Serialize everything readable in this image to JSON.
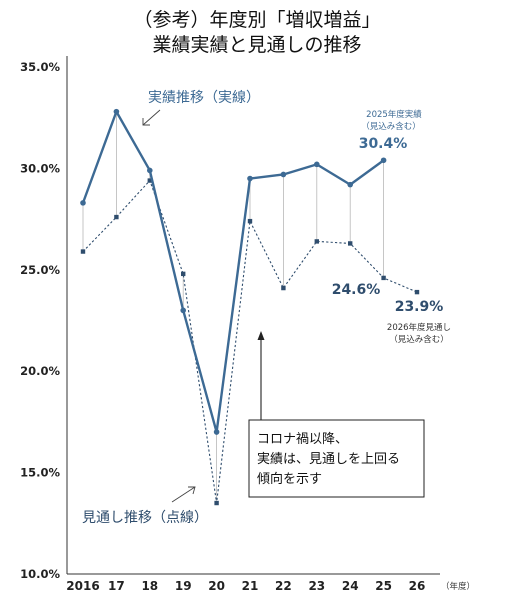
{
  "title_line1": "（参考）年度別「増収増益」",
  "title_line2": "業績実績と見通しの推移",
  "colors": {
    "actual": "#3d6a94",
    "forecast": "#2f4d6d",
    "axis": "#333333",
    "annotation_text": "#3d6a94",
    "connector": "#b8b8b8"
  },
  "chart_data": {
    "type": "line",
    "title": "（参考）年度別「増収増益」業績実績と見通しの推移",
    "x_unit_label": "（年度）",
    "categories": [
      "2016",
      "17",
      "18",
      "19",
      "20",
      "21",
      "22",
      "23",
      "24",
      "25",
      "26"
    ],
    "ylim": [
      10.0,
      35.0
    ],
    "y_ticks": [
      "10.0%",
      "15.0%",
      "20.0%",
      "25.0%",
      "30.0%",
      "35.0%"
    ],
    "grid": false,
    "series": [
      {
        "name": "実績推移（実線）",
        "style": "solid",
        "values": [
          28.3,
          32.8,
          29.9,
          23.0,
          17.0,
          29.5,
          29.7,
          30.2,
          29.2,
          30.4,
          null
        ]
      },
      {
        "name": "見通し推移（点線）",
        "style": "dotted",
        "values": [
          25.9,
          27.6,
          29.4,
          24.8,
          13.5,
          27.4,
          24.1,
          26.4,
          26.3,
          24.6,
          23.9
        ]
      }
    ],
    "annotations": {
      "actual_series_label": "実績推移（実線）",
      "forecast_series_label": "見通し推移（点線）",
      "fy2025_actual_caption_1": "2025年度実績",
      "fy2025_actual_caption_2": "（見込み含む）",
      "fy2025_actual_value": "30.4%",
      "fy2025_forecast_value": "24.6%",
      "fy2026_forecast_value": "23.9%",
      "fy2026_forecast_caption_1": "2026年度見通し",
      "fy2026_forecast_caption_2": "（見込み含む）",
      "callout_line1": "コロナ禍以降、",
      "callout_line2": "実績は、見通しを上回る",
      "callout_line3": "傾向を示す"
    }
  }
}
